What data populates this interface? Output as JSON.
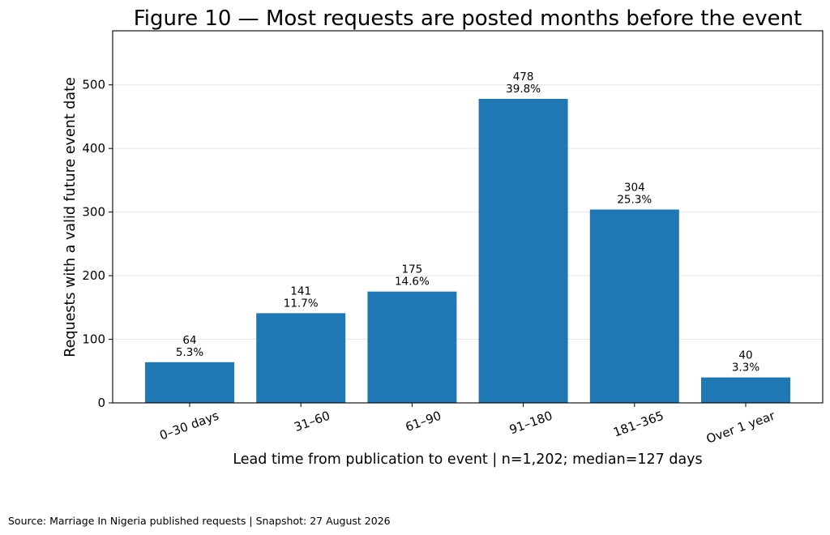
{
  "chart_data": {
    "type": "bar",
    "title": "Figure 10 — Most requests are posted months before the event",
    "xlabel": "Lead time from publication to event | n=1,202; median=127 days",
    "ylabel": "Requests with a valid future event date",
    "categories": [
      "0–30 days",
      "31–60",
      "61–90",
      "91–180",
      "181–365",
      "Over 1 year"
    ],
    "values": [
      64,
      141,
      175,
      478,
      304,
      40
    ],
    "data_labels": [
      {
        "count": "64",
        "share": "5.3%"
      },
      {
        "count": "141",
        "share": "11.7%"
      },
      {
        "count": "175",
        "share": "14.6%"
      },
      {
        "count": "478",
        "share": "39.8%"
      },
      {
        "count": "304",
        "share": "25.3%"
      },
      {
        "count": "40",
        "share": "3.3%"
      }
    ],
    "yticks": [
      0,
      100,
      200,
      300,
      400,
      500
    ],
    "ylim": [
      0,
      585
    ],
    "grid": "horizontal",
    "bar_color": "#1f77b4",
    "grid_color": "#e6e6e6"
  },
  "footer": {
    "source": "Source: Marriage In Nigeria published requests | Snapshot: 27 August 2026"
  }
}
